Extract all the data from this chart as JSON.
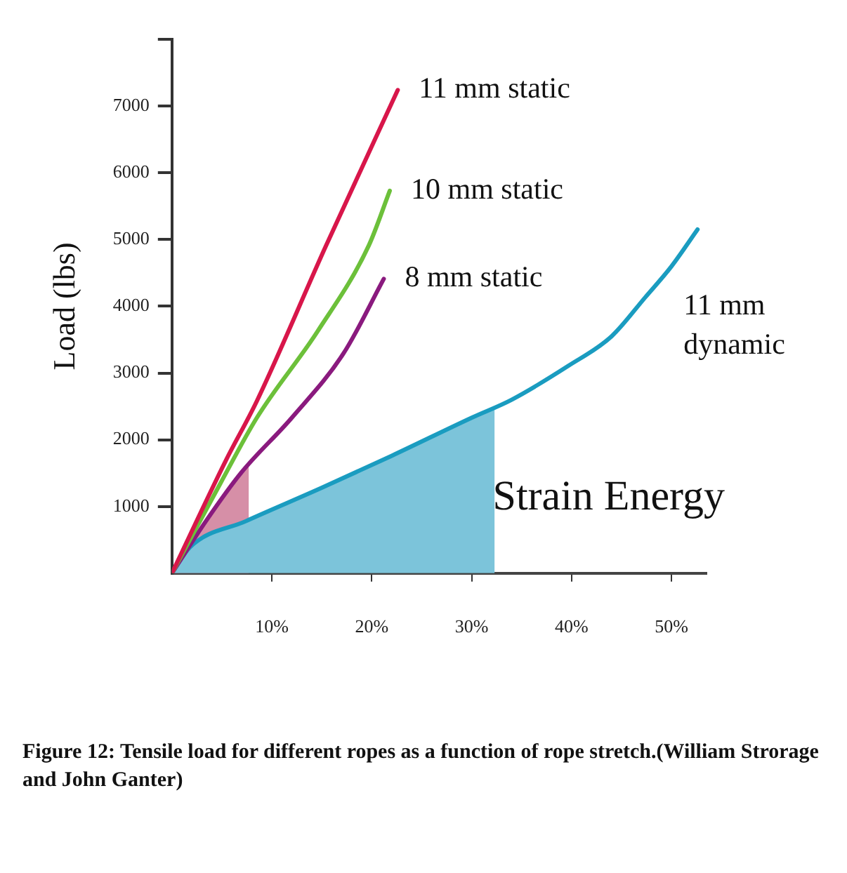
{
  "chart_data": {
    "type": "line",
    "ylabel": "Load (lbs)",
    "xlim": [
      0,
      53.5
    ],
    "xticks": [
      {
        "value": 10,
        "label": "10%"
      },
      {
        "value": 20,
        "label": "20%"
      },
      {
        "value": 30,
        "label": "30%"
      },
      {
        "value": 40,
        "label": "40%"
      },
      {
        "value": 50,
        "label": "50%"
      }
    ],
    "ylim": [
      0,
      8000
    ],
    "yticks": [
      1000,
      2000,
      3000,
      4000,
      5000,
      6000,
      7000,
      {
        "value": 8000,
        "label": null
      }
    ],
    "grid": false,
    "legend": false,
    "marker": "none",
    "line_style": "solid",
    "series": [
      {
        "type": "area",
        "color": "#7cc4da",
        "x": [
          0,
          1.8,
          7.4,
          15,
          22,
          30,
          32.3
        ],
        "values": [
          0,
          390,
          780,
          1280,
          1760,
          2330,
          2470
        ]
      },
      {
        "type": "area",
        "color": "#c86a8a",
        "x": [
          0,
          3.4,
          6.9,
          7.7
        ],
        "values": [
          0,
          780,
          1500,
          1600
        ]
      },
      {
        "name": "11 mm static",
        "color": "#d8164a",
        "x": [
          0,
          5.4,
          8.5,
          15.4,
          22.6
        ],
        "values": [
          0,
          1690,
          2580,
          4900,
          7240
        ]
      },
      {
        "name": "10 mm static",
        "color": "#6cc03a",
        "x": [
          0,
          4.9,
          8.5,
          14.6,
          19.7,
          21.8
        ],
        "values": [
          0,
          1360,
          2330,
          3630,
          4910,
          5730
        ]
      },
      {
        "name": "8 mm static",
        "color": "#8a1a7e",
        "x": [
          0,
          3.4,
          6.9,
          12,
          17.2,
          21.2
        ],
        "values": [
          0,
          780,
          1500,
          2330,
          3300,
          4410
        ]
      },
      {
        "name": "11 mm dynamic",
        "color": "#1a9cc0",
        "x": [
          0,
          1.8,
          7.4,
          15,
          22,
          30,
          34,
          39.7,
          44,
          47.4,
          50,
          52.6
        ],
        "values": [
          0,
          390,
          780,
          1280,
          1760,
          2330,
          2600,
          3110,
          3550,
          4140,
          4600,
          5150
        ]
      }
    ],
    "annotations": [
      "Strain Energy",
      "Figure 12: Tensile load for different ropes as a function of rope stretch.(William Strorage and John Ganter)"
    ]
  }
}
